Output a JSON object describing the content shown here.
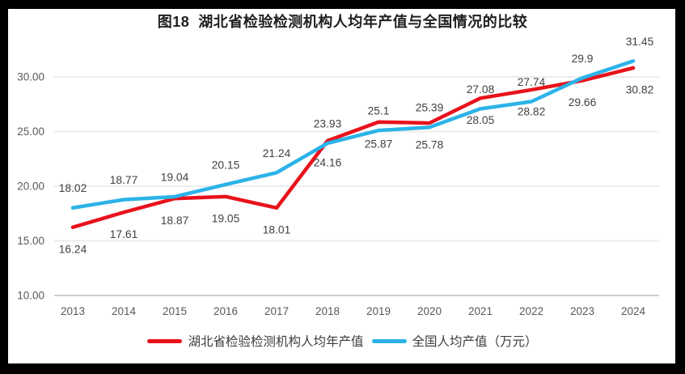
{
  "title": "图18  湖北省检验检测机构人均年产值与全国情况的比较",
  "legend": {
    "hubei": "湖北省检验检测机构人均年产值",
    "national": "全国人均产值（万元）"
  },
  "colors": {
    "hubei_red": "#e8121c",
    "national_blue": "#2bb3e8",
    "grid": "#ececec",
    "axis_line": "#bdbdbd",
    "tick_text": "#595959",
    "data_label_text": "#404040",
    "title_text": "#1f1f1f",
    "frame": "#000000",
    "background": "#ffffff"
  },
  "chart_data": {
    "type": "line",
    "title": "图18 湖北省检验检测机构人均年产值与全国情况的比较",
    "x": [
      "2013",
      "2014",
      "2015",
      "2016",
      "2017",
      "2018",
      "2019",
      "2020",
      "2021",
      "2022",
      "2023",
      "2024"
    ],
    "series": [
      {
        "name": "湖北省检验检测机构人均年产值",
        "color": "#e8121c",
        "values": [
          16.24,
          17.61,
          18.87,
          19.05,
          18.01,
          24.16,
          25.87,
          25.78,
          28.05,
          28.82,
          29.66,
          30.82
        ],
        "labels": [
          "16.24",
          "17.61",
          "18.87",
          "19.05",
          "18.01",
          "24.16",
          "25.87",
          "25.78",
          "28.05",
          "28.82",
          "29.66",
          "30.82"
        ],
        "label_position": "below"
      },
      {
        "name": "全国人均产值（万元）",
        "color": "#2bb3e8",
        "values": [
          18.02,
          18.77,
          19.04,
          20.15,
          21.24,
          23.93,
          25.1,
          25.39,
          27.08,
          27.74,
          29.9,
          31.45
        ],
        "labels": [
          "18.02",
          "18.77",
          "19.04",
          "20.15",
          "21.24",
          "23.93",
          "25.1",
          "25.39",
          "27.08",
          "27.74",
          "29.9",
          "31.45"
        ],
        "label_position": "above"
      }
    ],
    "y_ticks": [
      "10.00",
      "15.00",
      "20.00",
      "25.00",
      "30.00"
    ],
    "ylim": [
      10,
      32.6
    ],
    "grid": true,
    "legend_position": "bottom"
  }
}
